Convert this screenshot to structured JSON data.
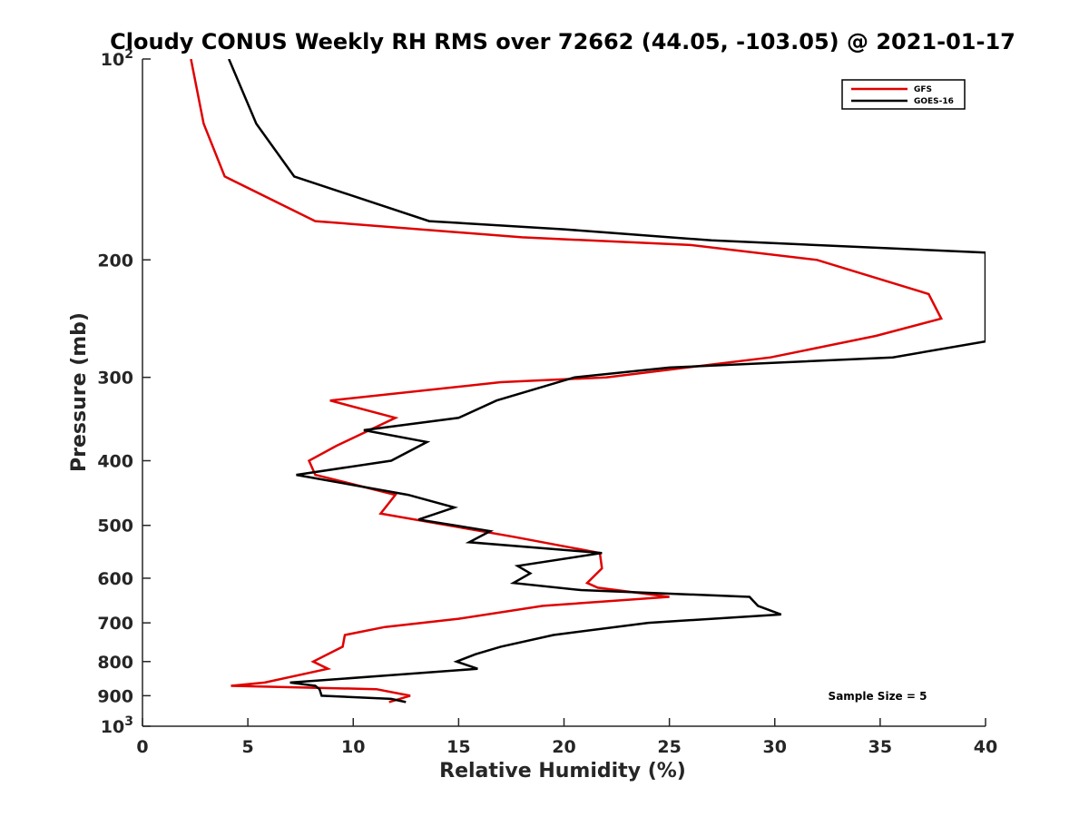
{
  "chart_data": {
    "type": "line",
    "title": "Cloudy CONUS Weekly RH RMS over 72662 (44.05, -103.05) @ 2021-01-17",
    "xlabel": "Relative Humidity (%)",
    "ylabel": "Pressure (mb)",
    "xlim": [
      0,
      40
    ],
    "ylim": [
      100,
      1000
    ],
    "y_scale": "log",
    "y_reversed": true,
    "grid": false,
    "legend_position": "top-right",
    "x_ticks": [
      "0",
      "5",
      "10",
      "15",
      "20",
      "25",
      "30",
      "35",
      "40"
    ],
    "y_ticks": [
      {
        "value": 100,
        "base": "10",
        "exp": "2"
      },
      {
        "value": 200,
        "label": "200"
      },
      {
        "value": 300,
        "label": "300"
      },
      {
        "value": 400,
        "label": "400"
      },
      {
        "value": 500,
        "label": "500"
      },
      {
        "value": 600,
        "label": "600"
      },
      {
        "value": 700,
        "label": "700"
      },
      {
        "value": 800,
        "label": "800"
      },
      {
        "value": 900,
        "label": "900"
      },
      {
        "value": 1000,
        "base": "10",
        "exp": "3"
      }
    ],
    "annotation": "Sample Size = 5",
    "series": [
      {
        "name": "GFS",
        "color": "#e00000",
        "points": [
          [
            2.3,
            100
          ],
          [
            2.9,
            125
          ],
          [
            3.9,
            150
          ],
          [
            8.2,
            175
          ],
          [
            18.0,
            185
          ],
          [
            26.0,
            190
          ],
          [
            32.0,
            200
          ],
          [
            37.3,
            225
          ],
          [
            37.9,
            245
          ],
          [
            34.8,
            260
          ],
          [
            29.8,
            280
          ],
          [
            22.0,
            300
          ],
          [
            17.0,
            305
          ],
          [
            8.9,
            325
          ],
          [
            12.0,
            345
          ],
          [
            9.2,
            380
          ],
          [
            7.9,
            400
          ],
          [
            8.2,
            420
          ],
          [
            12.0,
            450
          ],
          [
            11.3,
            480
          ],
          [
            17.6,
            520
          ],
          [
            21.7,
            550
          ],
          [
            21.8,
            580
          ],
          [
            21.1,
            610
          ],
          [
            21.6,
            620
          ],
          [
            25.0,
            640
          ],
          [
            19.0,
            660
          ],
          [
            15.0,
            690
          ],
          [
            11.5,
            710
          ],
          [
            9.6,
            730
          ],
          [
            9.5,
            760
          ],
          [
            8.1,
            800
          ],
          [
            8.8,
            820
          ],
          [
            5.8,
            860
          ],
          [
            4.2,
            870
          ],
          [
            11.1,
            880
          ],
          [
            12.7,
            900
          ],
          [
            11.7,
            920
          ]
        ]
      },
      {
        "name": "GOES-16",
        "color": "#000000",
        "points": [
          [
            4.1,
            100
          ],
          [
            5.4,
            125
          ],
          [
            7.2,
            150
          ],
          [
            13.6,
            175
          ],
          [
            20.0,
            180
          ],
          [
            27.0,
            187
          ],
          [
            40.0,
            195
          ],
          [
            40.0,
            265
          ],
          [
            35.6,
            280
          ],
          [
            25.0,
            290
          ],
          [
            20.5,
            300
          ],
          [
            16.8,
            325
          ],
          [
            15.0,
            345
          ],
          [
            10.5,
            360
          ],
          [
            13.5,
            375
          ],
          [
            11.8,
            400
          ],
          [
            7.3,
            420
          ],
          [
            12.6,
            450
          ],
          [
            14.8,
            470
          ],
          [
            13.1,
            490
          ],
          [
            16.5,
            510
          ],
          [
            15.5,
            530
          ],
          [
            21.8,
            550
          ],
          [
            17.8,
            575
          ],
          [
            18.4,
            590
          ],
          [
            17.6,
            610
          ],
          [
            20.8,
            625
          ],
          [
            28.8,
            640
          ],
          [
            29.2,
            660
          ],
          [
            30.3,
            680
          ],
          [
            24.0,
            700
          ],
          [
            19.5,
            730
          ],
          [
            17.0,
            760
          ],
          [
            15.8,
            780
          ],
          [
            14.9,
            800
          ],
          [
            15.9,
            820
          ],
          [
            11.5,
            840
          ],
          [
            7.0,
            860
          ],
          [
            8.2,
            870
          ],
          [
            8.4,
            880
          ],
          [
            8.5,
            900
          ],
          [
            11.8,
            910
          ],
          [
            12.5,
            920
          ]
        ]
      }
    ]
  }
}
